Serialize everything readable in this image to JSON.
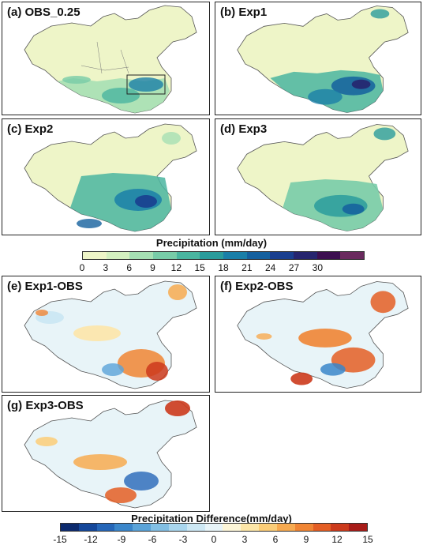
{
  "panels": [
    {
      "id": "a",
      "label": "(a) OBS_0.25"
    },
    {
      "id": "b",
      "label": "(b) Exp1"
    },
    {
      "id": "c",
      "label": "(c) Exp2"
    },
    {
      "id": "d",
      "label": "(d) Exp3"
    },
    {
      "id": "e",
      "label": "(e) Exp1-OBS"
    },
    {
      "id": "f",
      "label": "(f) Exp2-OBS"
    },
    {
      "id": "g",
      "label": "(g) Exp3-OBS"
    }
  ],
  "precip_colorbar": {
    "title": "Precipitation (mm/day)",
    "ticks": [
      "0",
      "3",
      "6",
      "9",
      "12",
      "15",
      "18",
      "21",
      "24",
      "27",
      "30"
    ],
    "colors": [
      "#eef5c8",
      "#d4f0c0",
      "#a6e0b4",
      "#78cca8",
      "#4ab5a0",
      "#2a9c9c",
      "#1a7fa8",
      "#14609e",
      "#1a3f8f",
      "#26256e",
      "#3c0f50",
      "#6a2a5e"
    ]
  },
  "diff_colorbar": {
    "title": "Precipitation Difference(mm/day)",
    "ticks": [
      "-15",
      "-12",
      "-9",
      "-6",
      "-3",
      "0",
      "3",
      "6",
      "9",
      "12",
      "15"
    ],
    "colors": [
      "#0c2a6e",
      "#14479a",
      "#2566b8",
      "#3a86ca",
      "#5aa3d8",
      "#82bfe4",
      "#a9d6ee",
      "#cde8f4",
      "#e8f4f8",
      "#fdf6d8",
      "#fde6a8",
      "#fbcd78",
      "#f7aa50",
      "#f08534",
      "#e45e24",
      "#cc3a1c",
      "#a81c18"
    ]
  }
}
